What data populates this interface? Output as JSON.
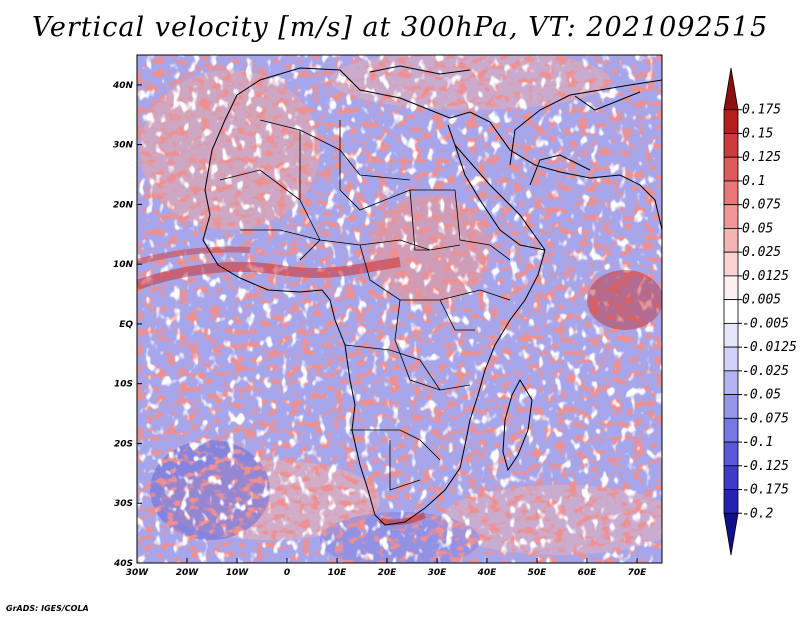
{
  "title": "Vertical velocity [m/s] at 300hPa, VT: 2021092515",
  "footer": "GrADS: IGES/COLA",
  "map": {
    "lon_range": [
      -30,
      75
    ],
    "lat_range": [
      -40,
      45
    ],
    "lon_ticks": [
      {
        "value": -30,
        "label": "30W"
      },
      {
        "value": -20,
        "label": "20W"
      },
      {
        "value": -10,
        "label": "10W"
      },
      {
        "value": 0,
        "label": "0"
      },
      {
        "value": 10,
        "label": "10E"
      },
      {
        "value": 20,
        "label": "20E"
      },
      {
        "value": 30,
        "label": "30E"
      },
      {
        "value": 40,
        "label": "40E"
      },
      {
        "value": 50,
        "label": "50E"
      },
      {
        "value": 60,
        "label": "60E"
      },
      {
        "value": 70,
        "label": "70E"
      }
    ],
    "lat_ticks": [
      {
        "value": 40,
        "label": "40N"
      },
      {
        "value": 30,
        "label": "30N"
      },
      {
        "value": 20,
        "label": "20N"
      },
      {
        "value": 10,
        "label": "10N"
      },
      {
        "value": 0,
        "label": "EQ"
      },
      {
        "value": -10,
        "label": "10S"
      },
      {
        "value": -20,
        "label": "20S"
      },
      {
        "value": -30,
        "label": "30S"
      },
      {
        "value": -40,
        "label": "40S"
      }
    ]
  },
  "colorbar": {
    "labels": [
      "0.175",
      "0.15",
      "0.125",
      "0.1",
      "0.075",
      "0.05",
      "0.025",
      "0.0125",
      "0.005",
      "-0.005",
      "-0.0125",
      "-0.025",
      "-0.05",
      "-0.075",
      "-0.1",
      "-0.125",
      "-0.175",
      "-0.2"
    ],
    "colors": [
      "#8c1010",
      "#b41e1e",
      "#cd3c3c",
      "#dc5a5a",
      "#e87878",
      "#f09696",
      "#f5b4b4",
      "#fad2d2",
      "#fdf0f0",
      "#ffffff",
      "#e6e6fa",
      "#d2d2f8",
      "#b4b4f2",
      "#9696ec",
      "#7878e4",
      "#5a5ad8",
      "#3c3cc8",
      "#2424b0",
      "#10108c"
    ]
  }
}
